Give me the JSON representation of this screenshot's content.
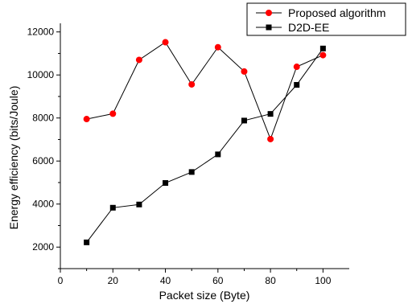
{
  "chart_data": {
    "type": "line",
    "xlabel": "Packet size (Byte)",
    "ylabel": "Energy efficiency (bits/Joule)",
    "xlim": [
      0,
      110
    ],
    "ylim": [
      1000,
      12400
    ],
    "x_ticks": [
      0,
      20,
      40,
      60,
      80,
      100
    ],
    "y_ticks": [
      2000,
      4000,
      6000,
      8000,
      10000,
      12000
    ],
    "grid": false,
    "legend_position": "top-right",
    "x": [
      10,
      20,
      30,
      40,
      50,
      60,
      70,
      80,
      90,
      100
    ],
    "series": [
      {
        "name": "Proposed algorithm",
        "marker": "circle",
        "color": "#ff0000",
        "values": [
          7950,
          8200,
          10700,
          11520,
          9560,
          11290,
          10160,
          7020,
          10380,
          10920
        ]
      },
      {
        "name": "D2D-EE",
        "marker": "square",
        "color": "#000000",
        "values": [
          2220,
          3830,
          3980,
          4980,
          5490,
          6310,
          7880,
          8190,
          9540,
          11230
        ]
      }
    ]
  }
}
